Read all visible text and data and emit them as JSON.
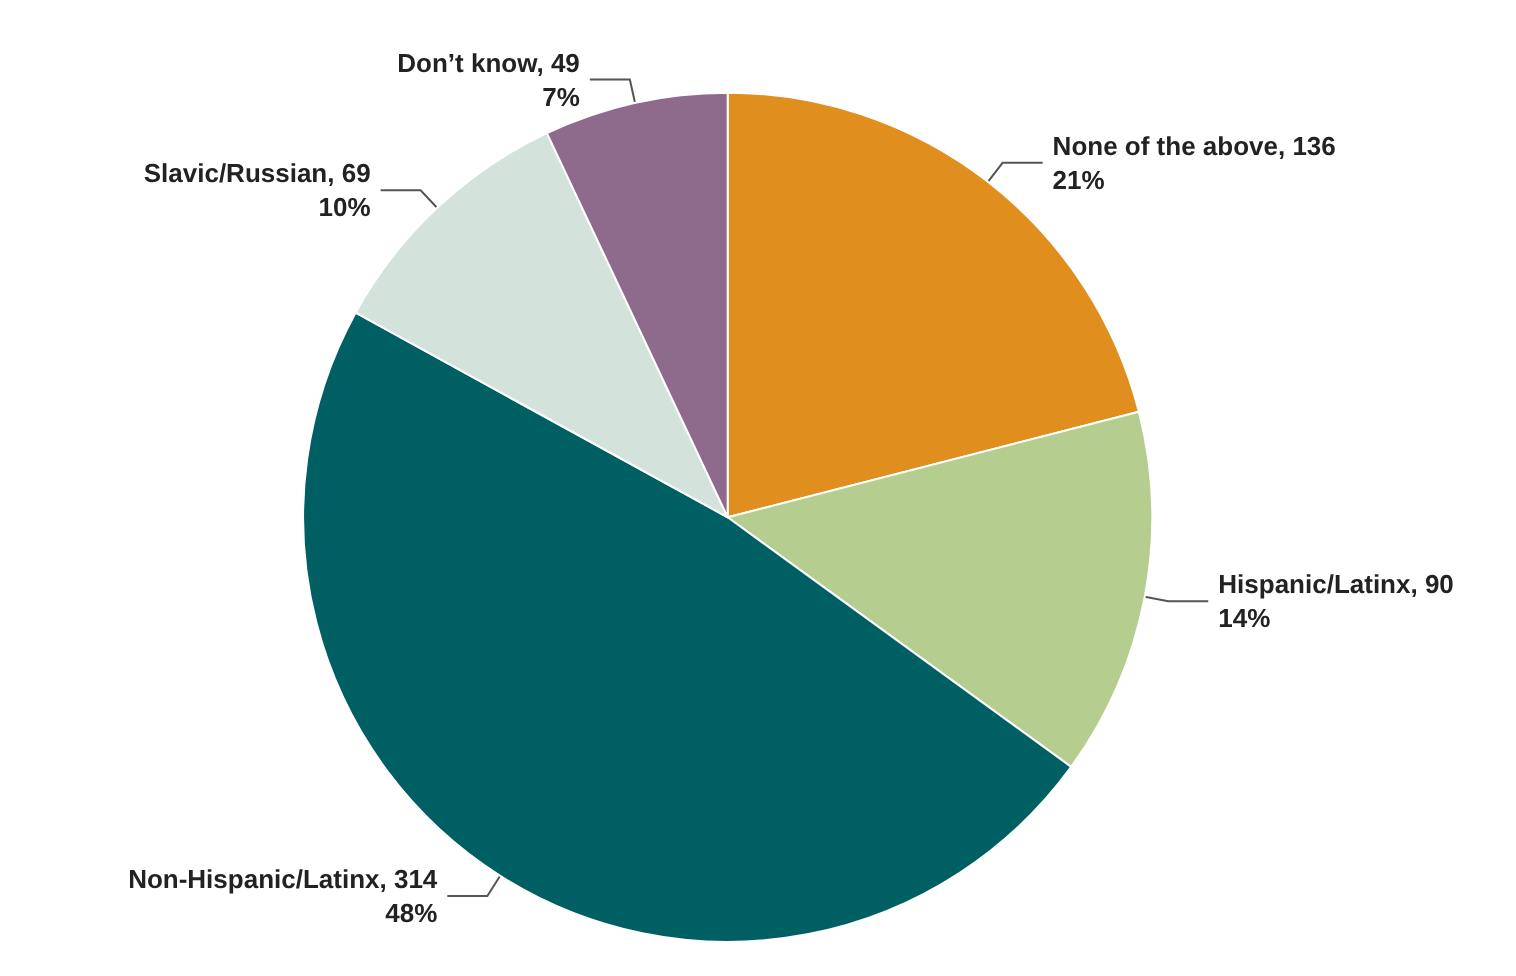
{
  "chart_data": {
    "type": "pie",
    "categories": [
      "None of the above, 136",
      "Hispanic/Latinx, 90",
      "Non-Hispanic/Latinx, 314",
      "Slavic/Russian, 69",
      "Don’t know, 49"
    ],
    "values": [
      21,
      14,
      48,
      10,
      7
    ],
    "colors": [
      "#e08e1e",
      "#b5cd8f",
      "#005f63",
      "#d4e2dc",
      "#8e6b8c"
    ],
    "value_labels": [
      "21%",
      "14%",
      "48%",
      "10%",
      "7%"
    ]
  }
}
